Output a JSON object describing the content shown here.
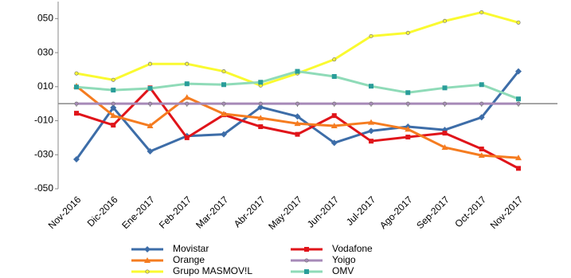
{
  "chart_data": {
    "type": "line",
    "categories": [
      "Nov-2016",
      "Dic-2016",
      "Ene-2017",
      "Feb-2017",
      "Mar-2017",
      "Abr-2017",
      "May-2017",
      "Jun-2017",
      "Jul-2017",
      "Ago-2017",
      "Sep-2017",
      "Oct-2017",
      "Nov-2017"
    ],
    "ylim": [
      -50,
      60
    ],
    "yticks": [
      {
        "value": -50,
        "label": "-050"
      },
      {
        "value": -30,
        "label": "-030"
      },
      {
        "value": -10,
        "label": "-010"
      },
      {
        "value": 10,
        "label": "010"
      },
      {
        "value": 30,
        "label": "030"
      },
      {
        "value": 50,
        "label": "050"
      }
    ],
    "series": [
      {
        "name": "Movistar",
        "color": "#3d6da8",
        "marker": "diamond",
        "values": [
          -32.7,
          -2.3,
          -28,
          -19,
          -18,
          -2,
          -7.5,
          -23,
          -16,
          -13.5,
          -15.4,
          -8,
          19
        ]
      },
      {
        "name": "Vodafone",
        "color": "#e0141a",
        "marker": "square",
        "values": [
          -5.6,
          -12.6,
          9.3,
          -20,
          -6.5,
          -13.5,
          -18,
          -7,
          -22,
          -19.6,
          -17.3,
          -26.6,
          -38
        ]
      },
      {
        "name": "Orange",
        "color": "#f57c20",
        "marker": "triangle",
        "values": [
          10.3,
          -7,
          -13,
          3.7,
          -6,
          -8.4,
          -11.7,
          -13,
          -11,
          -15,
          -25.7,
          -30.4,
          -31.8
        ]
      },
      {
        "name": "Yoigo",
        "color": "#a78ab8",
        "marker": "circle",
        "values": [
          0,
          0,
          0,
          0,
          0,
          0,
          0,
          0,
          0,
          0,
          0,
          0,
          0
        ]
      },
      {
        "name": "Grupo MASMOV!L",
        "color": "#fafa30",
        "marker": "circle",
        "values": [
          17.8,
          14,
          23.4,
          23.4,
          19,
          10.7,
          17.8,
          26,
          39.7,
          41.6,
          48.6,
          53.7,
          47.7
        ]
      },
      {
        "name": "OMV",
        "color": "#8fdbb8",
        "marker": "square",
        "values": [
          9.8,
          8,
          9,
          11.7,
          11.2,
          12.6,
          19,
          16,
          10.3,
          6.5,
          9.3,
          11.2,
          2.8
        ]
      }
    ]
  }
}
